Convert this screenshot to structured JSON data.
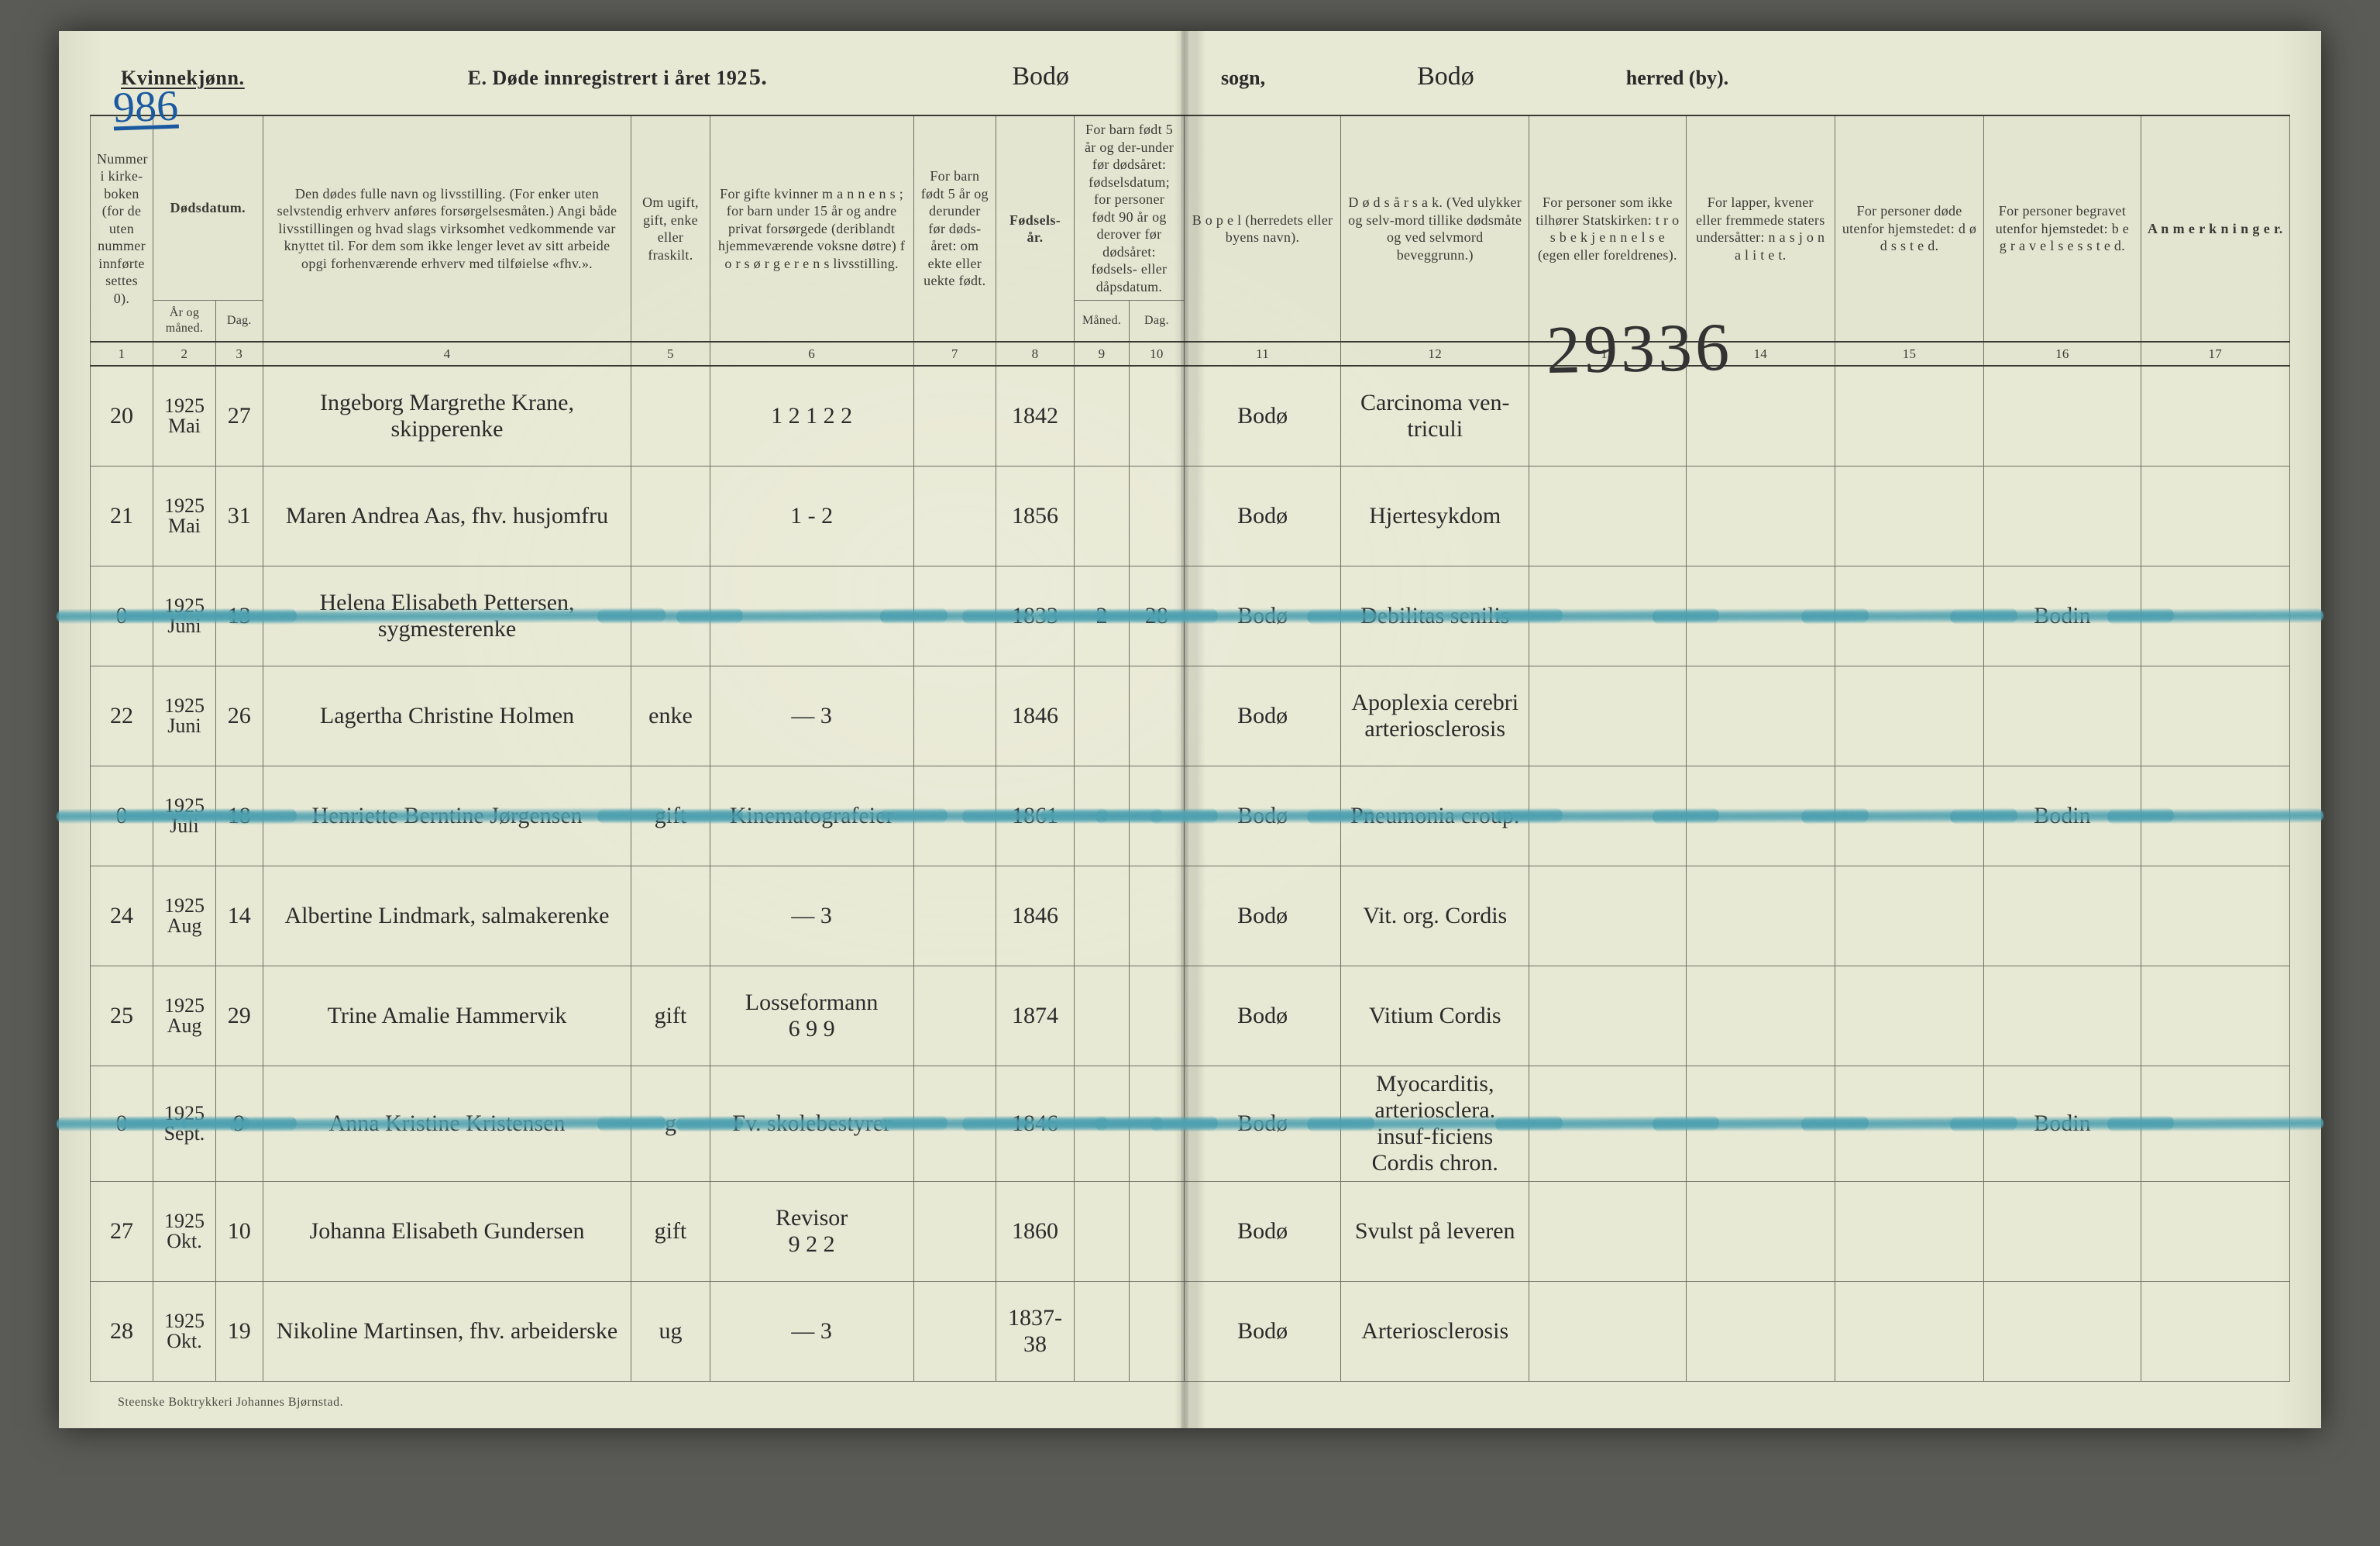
{
  "colors": {
    "paper": "#e8e9d4",
    "ink": "#2b2b2b",
    "rule": "#6f6f64",
    "rule_heavy": "#3a3a34",
    "blue_pencil": "#1b5aa0",
    "teal_strike": "#4da0b0",
    "background": "#5a5a56"
  },
  "typography": {
    "print_family": "Times New Roman / Georgia serif",
    "hand_family": "Brush Script style",
    "header_fontsize_pt": 13,
    "colnum_fontsize_pt": 9,
    "body_hand_fontsize_pt": 15
  },
  "header": {
    "kvinnekjonn": "Kvinnekjønn.",
    "page_number_hand": "986",
    "title_prefix": "E.  Døde innregistrert i året 192",
    "year_suffix_hand": "5.",
    "sogn_hand": "Bodø",
    "sogn_label": "sogn,",
    "herred_hand": "Bodø",
    "herred_label": "herred (by)."
  },
  "stamp_number": "29336",
  "footer_printer": "Steenske Boktrykkeri Johannes Bjørnstad.",
  "columns": {
    "c1": "Nummer i kirke-boken (for de uten nummer innførte settes 0).",
    "c23_group": "Dødsdatum.",
    "c2": "År og måned.",
    "c3": "Dag.",
    "c4": "Den dødes fulle navn og livsstilling. (For enker uten selvstendig erhverv anføres forsørgelsesmåten.) Angi både livsstillingen og hvad slags virksomhet vedkommende var knyttet til. For dem som ikke lenger levet av sitt arbeide opgi forhenværende erhverv med tilføielse «fhv.».",
    "c5": "Om ugift, gift, enke eller fraskilt.",
    "c6": "For gifte kvinner m a n n e n s ; for barn under 15 år og andre privat forsørgede (deriblandt hjemmeværende voksne døtre) f o r s ø r g e r e n s  livsstilling.",
    "c7": "For barn født 5 år og derunder før døds-året: om ekte eller uekte født.",
    "c8": "Fødsels-år.",
    "c910_group": "For barn født 5 år og der-under før dødsåret: fødselsdatum; for personer født 90 år og derover før dødsåret: fødsels- eller dåpsdatum.",
    "c9": "Måned.",
    "c10": "Dag.",
    "c11": "B o p e l (herredets eller byens navn).",
    "c12": "D ø d s å r s a k. (Ved ulykker og selv-mord tillike dødsmåte og ved selvmord beveggrunn.)",
    "c13": "For personer som ikke tilhører Statskirken: t r o s b e k j e n n e l s e (egen eller foreldrenes).",
    "c14": "For lapper, kvener eller fremmede staters undersåtter: n a s j o n a l i t e t.",
    "c15": "For personer døde utenfor hjemstedet: d ø d s s t e d.",
    "c16": "For personer begravet utenfor hjemstedet: b e g r a v e l s e s s t e d.",
    "c17": "A n m e r k n i n g e r."
  },
  "colnums": [
    "1",
    "2",
    "3",
    "4",
    "5",
    "6",
    "7",
    "8",
    "9",
    "10",
    "11",
    "12",
    "13",
    "14",
    "15",
    "16",
    "17"
  ],
  "rows": [
    {
      "no": "20",
      "year": "1925",
      "month": "Mai",
      "day": "27",
      "name": "Ingeborg Margrethe Krane, skipperenke",
      "c5": "",
      "c6": "1 2 1 2 2",
      "c7": "",
      "c8": "1842",
      "c9": "",
      "c10": "",
      "c11": "Bodø",
      "c12": "Carcinoma ven-triculi",
      "c16": "",
      "crossed": false
    },
    {
      "no": "21",
      "year": "1925",
      "month": "Mai",
      "day": "31",
      "name": "Maren Andrea Aas, fhv. husjomfru",
      "c5": "",
      "c6": "1 - 2",
      "c7": "",
      "c8": "1856",
      "c9": "",
      "c10": "",
      "c11": "Bodø",
      "c12": "Hjertesykdom",
      "c16": "",
      "crossed": false
    },
    {
      "no": "0",
      "year": "1925",
      "month": "Juni",
      "day": "13",
      "name": "Helena Elisabeth Pettersen, sygmesterenke",
      "c5": "",
      "c6": "",
      "c7": "",
      "c8": "1833",
      "c9": "2",
      "c10": "28",
      "c11": "Bodø",
      "c12": "Debilitas senilis",
      "c16": "Bodin",
      "crossed": true
    },
    {
      "no": "22",
      "year": "1925",
      "month": "Juni",
      "day": "26",
      "name": "Lagertha Christine Holmen",
      "c5": "enke",
      "c6": "—     3",
      "c7": "",
      "c8": "1846",
      "c9": "",
      "c10": "",
      "c11": "Bodø",
      "c12": "Apoplexia cerebri arteriosclerosis",
      "c16": "",
      "crossed": false
    },
    {
      "no": "0",
      "year": "1925",
      "month": "Juli",
      "day": "18",
      "name": "Henriette Berntine Jørgensen",
      "c5": "gift",
      "c6": "Kinematografeier",
      "c7": "",
      "c8": "1861",
      "c9": "",
      "c10": "",
      "c11": "Bodø",
      "c12": "Pneumonia croup.",
      "c16": "Bodin",
      "crossed": true
    },
    {
      "no": "24",
      "year": "1925",
      "month": "Aug",
      "day": "14",
      "name": "Albertine Lindmark, salmakerenke",
      "c5": "",
      "c6": "—     3",
      "c7": "",
      "c8": "1846",
      "c9": "",
      "c10": "",
      "c11": "Bodø",
      "c12": "Vit. org. Cordis",
      "c16": "",
      "crossed": false
    },
    {
      "no": "25",
      "year": "1925",
      "month": "Aug",
      "day": "29",
      "name": "Trine Amalie Hammervik",
      "c5": "gift",
      "c6": "Losseformann\n6 9 9",
      "c7": "",
      "c8": "1874",
      "c9": "",
      "c10": "",
      "c11": "Bodø",
      "c12": "Vitium Cordis",
      "c16": "",
      "crossed": false
    },
    {
      "no": "0",
      "year": "1925",
      "month": "Sept.",
      "day": "9",
      "name": "Anna Kristine Kristensen",
      "c5": "g",
      "c6": "Fv. skolebestyrer",
      "c7": "",
      "c8": "1846",
      "c9": "",
      "c10": "",
      "c11": "Bodø",
      "c12": "Myocarditis, arteriosclera. insuf-ficiens Cordis chron.",
      "c16": "Bodin",
      "crossed": true
    },
    {
      "no": "27",
      "year": "1925",
      "month": "Okt.",
      "day": "10",
      "name": "Johanna Elisabeth Gundersen",
      "c5": "gift",
      "c6": "Revisor\n9 2 2",
      "c7": "",
      "c8": "1860",
      "c9": "",
      "c10": "",
      "c11": "Bodø",
      "c12": "Svulst på leveren",
      "c16": "",
      "crossed": false
    },
    {
      "no": "28",
      "year": "1925",
      "month": "Okt.",
      "day": "19",
      "name": "Nikoline Martinsen, fhv. arbeiderske",
      "c5": "ug",
      "c6": "—     3",
      "c7": "",
      "c8": "1837-38",
      "c9": "",
      "c10": "",
      "c11": "Bodø",
      "c12": "Arteriosclerosis",
      "c16": "",
      "crossed": false
    }
  ]
}
